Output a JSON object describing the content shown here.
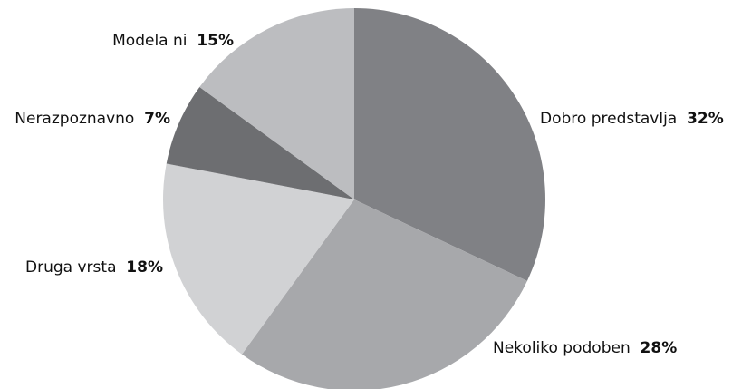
{
  "chart_data": {
    "type": "pie",
    "title": "",
    "slices": [
      {
        "label": "Dobro predstavlja",
        "value": 32,
        "display": "32%",
        "color": "#808185"
      },
      {
        "label": "Nekoliko podoben",
        "value": 28,
        "display": "28%",
        "color": "#a7a8ab"
      },
      {
        "label": "Druga vrsta",
        "value": 18,
        "display": "18%",
        "color": "#d1d2d4"
      },
      {
        "label": "Nerazpoznavno",
        "value": 7,
        "display": "7%",
        "color": "#6d6e71"
      },
      {
        "label": "Modela ni",
        "value": 15,
        "display": "15%",
        "color": "#bcbdc0"
      }
    ],
    "start_angle_deg": 0,
    "direction": "clockwise"
  }
}
